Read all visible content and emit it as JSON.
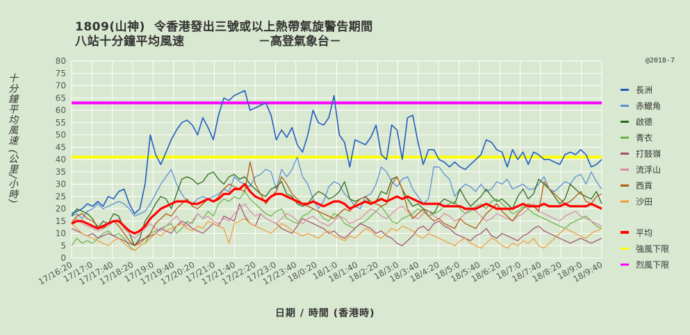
{
  "header": {
    "title_line1": "1809(山神)  令香港發出三號或以上熱帶氣旋警告期間",
    "title_line2": "八站十分鐘平均風速",
    "source": "－高登氣象台－",
    "copyright": "@2018-7"
  },
  "chart_data": {
    "type": "line",
    "ylabel": "十分鐘平均風速 (公里/小時)",
    "xlabel": "日期 / 時間 (香港時)",
    "ylim": [
      0,
      80
    ],
    "yticks": [
      0,
      5,
      10,
      15,
      20,
      25,
      30,
      35,
      40,
      45,
      50,
      55,
      60,
      65,
      70,
      75,
      80
    ],
    "x_tick_labels": [
      "17/16:20",
      "17/17:0",
      "17/17:40",
      "17/18:20",
      "17/19:0",
      "17/19:40",
      "17/20:20",
      "17/21:0",
      "17/21:40",
      "17/22:20",
      "17/23:0",
      "17/23:40",
      "18/0:20",
      "18/1:0",
      "18/1:40",
      "18/2:20",
      "18/3:0",
      "18/3:40",
      "18/4:20",
      "18/5:0",
      "18/5:40",
      "18/6:20",
      "18/7:0",
      "18/7:40",
      "18/8:20",
      "18/9:0",
      "18/9:40"
    ],
    "grid": true,
    "legend_position": "right",
    "reference_lines": [
      {
        "name": "強風下限",
        "value": 41,
        "color": "#ffff00"
      },
      {
        "name": "烈風下限",
        "value": 63,
        "color": "#ff00ff"
      }
    ],
    "series": [
      {
        "name": "長洲",
        "color": "#1f5bc0",
        "width": 1.6,
        "values": [
          18,
          19,
          20,
          22,
          21,
          23,
          21,
          25,
          24,
          27,
          28,
          22,
          18,
          20,
          30,
          50,
          42,
          38,
          43,
          48,
          52,
          55,
          56,
          54,
          50,
          57,
          53,
          48,
          58,
          65,
          64,
          66,
          67,
          68,
          60,
          61,
          62,
          63,
          58,
          48,
          52,
          49,
          53,
          46,
          43,
          50,
          60,
          55,
          54,
          57,
          66,
          50,
          47,
          37,
          48,
          47,
          46,
          49,
          54,
          42,
          40,
          54,
          52,
          40,
          57,
          58,
          47,
          38,
          44,
          44,
          40,
          39,
          37,
          39,
          37,
          36,
          38,
          40,
          42,
          48,
          47,
          44,
          43,
          37,
          44,
          40,
          43,
          38,
          43,
          42,
          40,
          40,
          39,
          38,
          42,
          43,
          42,
          44,
          42,
          37,
          38,
          40
        ]
      },
      {
        "name": "赤鱲角",
        "color": "#5b8fd6",
        "width": 1.3,
        "values": [
          17,
          18,
          16,
          19,
          20,
          22,
          20,
          21,
          22,
          23,
          22,
          20,
          17,
          18,
          19,
          22,
          26,
          30,
          33,
          36,
          30,
          26,
          23,
          22,
          24,
          25,
          24,
          25,
          26,
          28,
          27,
          33,
          31,
          30,
          29,
          33,
          34,
          36,
          35,
          28,
          36,
          33,
          36,
          41,
          33,
          30,
          24,
          20,
          23,
          29,
          31,
          30,
          26,
          24,
          21,
          20,
          25,
          26,
          30,
          37,
          35,
          31,
          29,
          32,
          33,
          28,
          25,
          22,
          24,
          37,
          37,
          34,
          32,
          25,
          28,
          30,
          29,
          27,
          30,
          27,
          28,
          31,
          30,
          32,
          28,
          29,
          30,
          28,
          28,
          30,
          33,
          28,
          27,
          29,
          31,
          30,
          33,
          34,
          30,
          35,
          31,
          28
        ]
      },
      {
        "name": "啟德",
        "color": "#2d6a1f",
        "width": 1.3,
        "values": [
          17,
          20,
          19,
          18,
          16,
          12,
          15,
          14,
          18,
          17,
          12,
          10,
          5,
          8,
          15,
          18,
          22,
          25,
          24,
          20,
          26,
          32,
          33,
          32,
          30,
          31,
          34,
          35,
          32,
          30,
          33,
          34,
          32,
          33,
          30,
          28,
          26,
          25,
          28,
          29,
          31,
          26,
          25,
          22,
          21,
          22,
          25,
          27,
          26,
          24,
          25,
          27,
          31,
          24,
          23,
          24,
          25,
          22,
          23,
          27,
          26,
          32,
          33,
          28,
          24,
          21,
          22,
          20,
          19,
          18,
          22,
          24,
          23,
          22,
          28,
          24,
          21,
          23,
          25,
          28,
          25,
          23,
          24,
          22,
          20,
          25,
          28,
          24,
          26,
          32,
          30,
          28,
          25,
          22,
          24,
          30,
          28,
          26,
          25,
          24,
          27,
          22
        ]
      },
      {
        "name": "青衣",
        "color": "#66b04a",
        "width": 1.2,
        "values": [
          5,
          8,
          6,
          7,
          6,
          8,
          10,
          11,
          9,
          10,
          8,
          5,
          3,
          5,
          6,
          10,
          11,
          12,
          13,
          14,
          10,
          12,
          15,
          14,
          18,
          16,
          19,
          17,
          22,
          24,
          23,
          25,
          24,
          27,
          24,
          22,
          20,
          18,
          17,
          19,
          20,
          16,
          15,
          14,
          17,
          18,
          20,
          19,
          16,
          15,
          18,
          17,
          14,
          13,
          12,
          14,
          15,
          17,
          19,
          21,
          18,
          15,
          14,
          16,
          17,
          18,
          20,
          19,
          17,
          18,
          19,
          21,
          22,
          23,
          20,
          18,
          19,
          21,
          22,
          20,
          23,
          24,
          22,
          20,
          18,
          19,
          21,
          20,
          18,
          17,
          16,
          15,
          14,
          13,
          12,
          14,
          15,
          16,
          17,
          15,
          13,
          12
        ]
      },
      {
        "name": "打鼓嶺",
        "color": "#9e4a6e",
        "width": 1.2,
        "values": [
          12,
          11,
          10,
          9,
          10,
          8,
          9,
          10,
          9,
          8,
          7,
          6,
          5,
          7,
          8,
          9,
          10,
          12,
          11,
          10,
          13,
          15,
          14,
          12,
          11,
          10,
          12,
          14,
          13,
          17,
          16,
          15,
          22,
          17,
          14,
          13,
          18,
          16,
          15,
          14,
          12,
          11,
          10,
          13,
          16,
          15,
          14,
          13,
          12,
          10,
          11,
          9,
          8,
          10,
          12,
          14,
          13,
          12,
          10,
          11,
          9,
          8,
          6,
          5,
          7,
          9,
          12,
          13,
          11,
          14,
          15,
          13,
          12,
          10,
          9,
          8,
          7,
          9,
          10,
          12,
          9,
          8,
          10,
          9,
          8,
          7,
          9,
          10,
          12,
          13,
          11,
          10,
          9,
          8,
          7,
          6,
          7,
          8,
          7,
          6,
          7,
          8
        ]
      },
      {
        "name": "流浮山",
        "color": "#d88aa8",
        "width": 1.2,
        "values": [
          15,
          16,
          14,
          13,
          12,
          11,
          12,
          13,
          15,
          16,
          12,
          10,
          8,
          10,
          12,
          14,
          12,
          11,
          13,
          15,
          17,
          14,
          13,
          15,
          18,
          16,
          17,
          15,
          14,
          16,
          15,
          18,
          20,
          22,
          19,
          17,
          18,
          16,
          15,
          14,
          16,
          18,
          17,
          15,
          14,
          16,
          17,
          15,
          14,
          13,
          15,
          17,
          16,
          14,
          15,
          16,
          18,
          20,
          19,
          17,
          16,
          18,
          20,
          21,
          19,
          17,
          16,
          18,
          19,
          17,
          16,
          18,
          17,
          15,
          16,
          18,
          20,
          19,
          17,
          15,
          16,
          18,
          17,
          16,
          15,
          17,
          18,
          20,
          22,
          19,
          18,
          17,
          16,
          15,
          17,
          18,
          19,
          17,
          16,
          15,
          14,
          13
        ]
      },
      {
        "name": "西貢",
        "color": "#b25a12",
        "width": 1.3,
        "values": [
          14,
          17,
          18,
          16,
          15,
          13,
          12,
          14,
          15,
          13,
          10,
          7,
          5,
          6,
          8,
          10,
          14,
          16,
          18,
          17,
          20,
          22,
          24,
          21,
          20,
          22,
          24,
          23,
          25,
          28,
          30,
          29,
          28,
          27,
          39,
          30,
          26,
          22,
          25,
          27,
          33,
          30,
          26,
          24,
          22,
          21,
          20,
          19,
          18,
          17,
          16,
          18,
          20,
          19,
          22,
          24,
          25,
          23,
          22,
          21,
          22,
          30,
          33,
          28,
          20,
          16,
          18,
          20,
          17,
          15,
          16,
          14,
          13,
          12,
          16,
          14,
          13,
          12,
          15,
          18,
          20,
          22,
          19,
          17,
          15,
          18,
          20,
          22,
          21,
          19,
          31,
          28,
          26,
          24,
          22,
          23,
          25,
          27,
          23,
          22,
          25,
          26
        ]
      },
      {
        "name": "沙田",
        "color": "#f09a3a",
        "width": 1.2,
        "values": [
          14,
          12,
          10,
          9,
          8,
          7,
          6,
          5,
          7,
          8,
          6,
          4,
          3,
          5,
          6,
          8,
          10,
          9,
          11,
          12,
          13,
          14,
          12,
          11,
          13,
          12,
          15,
          14,
          13,
          12,
          6,
          14,
          15,
          16,
          14,
          13,
          12,
          11,
          10,
          12,
          14,
          13,
          11,
          10,
          9,
          10,
          9,
          8,
          10,
          11,
          9,
          8,
          7,
          9,
          8,
          10,
          12,
          11,
          9,
          8,
          10,
          12,
          11,
          13,
          12,
          11,
          9,
          8,
          10,
          9,
          8,
          7,
          6,
          5,
          7,
          8,
          6,
          5,
          4,
          6,
          8,
          7,
          5,
          4,
          6,
          5,
          7,
          6,
          8,
          5,
          4,
          6,
          8,
          10,
          12,
          11,
          10,
          9,
          8,
          10,
          11,
          12
        ]
      },
      {
        "name": "平均",
        "color": "#ff0000",
        "width": 3.2,
        "values": [
          14,
          15,
          15,
          14,
          13,
          12,
          13,
          14,
          15,
          15,
          13,
          11,
          10,
          11,
          13,
          16,
          18,
          20,
          21,
          22,
          23,
          23,
          23,
          22,
          22,
          23,
          24,
          23,
          24,
          26,
          26,
          28,
          28,
          30,
          27,
          25,
          24,
          23,
          25,
          26,
          26,
          25,
          24,
          23,
          22,
          22,
          23,
          22,
          21,
          22,
          23,
          23,
          22,
          20,
          21,
          22,
          23,
          22,
          23,
          24,
          23,
          24,
          25,
          24,
          25,
          24,
          23,
          22,
          22,
          22,
          22,
          21,
          21,
          21,
          21,
          20,
          20,
          20,
          21,
          22,
          21,
          20,
          20,
          20,
          20,
          21,
          22,
          21,
          21,
          21,
          22,
          21,
          21,
          21,
          22,
          21,
          21,
          21,
          21,
          22,
          21,
          20
        ]
      }
    ]
  }
}
